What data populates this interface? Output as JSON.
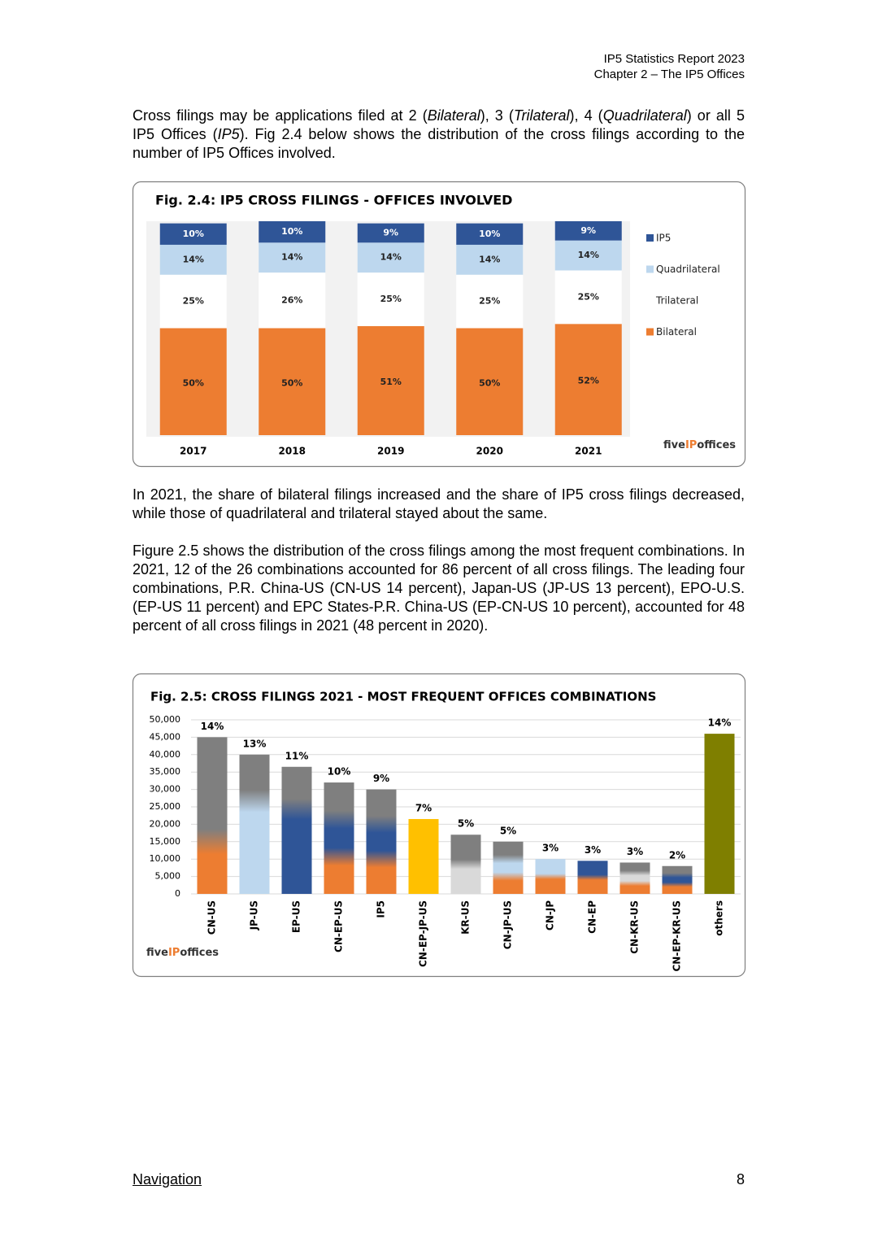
{
  "header": {
    "line1": "IP5 Statistics Report 2023",
    "line2": "Chapter 2 – The IP5 Offices"
  },
  "paragraphs": [
    [
      "Cross filings may be applications filed at 2 (",
      "Bilateral",
      "), 3 (",
      "Trilateral",
      "), 4 (",
      "Quadrilateral",
      ") or all 5 IP5 Offices (",
      "IP5",
      "). Fig 2.4 below shows the distribution of the cross filings according to the number of IP5 Offices involved."
    ],
    "In 2021, the share of bilateral filings increased and the share of IP5 cross filings decreased, while those of quadrilateral and trilateral stayed about the same.",
    "Figure 2.5 shows the distribution of the cross filings among the most frequent combinations. In 2021, 12 of the 26 combinations accounted for 86 percent of all cross filings. The leading four combinations, P.R. China-US (CN-US 14 percent), Japan-US (JP-US 13 percent), EPO-U.S. (EP-US 11 percent) and EPC States-P.R. China-US (EP-CN-US 10 percent), accounted for 48 percent of all cross filings in 2021 (48 percent in 2020)."
  ],
  "chart_data": [
    {
      "type": "bar",
      "stacked": true,
      "title": "Fig. 2.4: IP5 CROSS FILINGS - OFFICES INVOLVED",
      "categories": [
        "2017",
        "2018",
        "2019",
        "2020",
        "2021"
      ],
      "series": [
        {
          "name": "IP5",
          "color": "#2f5597",
          "label_color": "#ffffff",
          "values": [
            10,
            10,
            9,
            10,
            9
          ],
          "value_labels": [
            "10%",
            "10%",
            "9%",
            "10%",
            "9%"
          ]
        },
        {
          "name": "Quadrilateral",
          "color": "#bdd7ee",
          "label_color": "#222222",
          "values": [
            14,
            14,
            14,
            14,
            14
          ],
          "value_labels": [
            "14%",
            "14%",
            "14%",
            "14%",
            "14%"
          ]
        },
        {
          "name": "Trilateral",
          "color": "#ffffff",
          "label_color": "#222222",
          "values": [
            25,
            26,
            25,
            25,
            25
          ],
          "value_labels": [
            "25%",
            "26%",
            "25%",
            "25%",
            "25%"
          ]
        },
        {
          "name": "Bilateral",
          "color": "#ed7d31",
          "label_color": "#222222",
          "values": [
            50,
            50,
            51,
            50,
            52
          ],
          "value_labels": [
            "50%",
            "50%",
            "51%",
            "50%",
            "52%"
          ]
        }
      ],
      "legend": "right",
      "logo": [
        "five",
        "IP",
        "offices"
      ]
    },
    {
      "type": "bar",
      "title": "Fig. 2.5: CROSS FILINGS 2021 - MOST FREQUENT OFFICES COMBINATIONS",
      "categories": [
        "CN-US",
        "JP-US",
        "EP-US",
        "CN-EP-US",
        "IP5",
        "CN-EP-JP-US",
        "KR-US",
        "CN-JP-US",
        "CN-JP",
        "CN-EP",
        "CN-KR-US",
        "CN-EP-KR-US",
        "others"
      ],
      "values": [
        45000,
        40000,
        36500,
        32000,
        30000,
        21500,
        17000,
        15000,
        10000,
        9500,
        9000,
        8000,
        46000
      ],
      "value_labels": [
        "14%",
        "13%",
        "11%",
        "10%",
        "9%",
        "7%",
        "5%",
        "5%",
        "3%",
        "3%",
        "3%",
        "2%",
        "14%"
      ],
      "colors": [
        [
          "#7f7f7f",
          "#7f7f7f",
          "#ed7d31"
        ],
        [
          "#7f7f7f",
          "#bdd7ee",
          "#bdd7ee"
        ],
        [
          "#7f7f7f",
          "#2f5597",
          "#2f5597"
        ],
        [
          "#7f7f7f",
          "#2f5597",
          "#ed7d31"
        ],
        [
          "#7f7f7f",
          "#2f5597",
          "#ed7d31"
        ],
        [
          "#ffc000"
        ],
        [
          "#7f7f7f",
          "#d9d9d9"
        ],
        [
          "#7f7f7f",
          "#bdd7ee",
          "#ed7d31"
        ],
        [
          "#bdd7ee",
          "#ed7d31"
        ],
        [
          "#2f5597",
          "#ed7d31"
        ],
        [
          "#7f7f7f",
          "#d9d9d9",
          "#ed7d31"
        ],
        [
          "#7f7f7f",
          "#2f5597",
          "#ed7d31"
        ],
        [
          "#7f7f00"
        ]
      ],
      "ylim": [
        0,
        50000
      ],
      "yticks": [
        0,
        {
          "value": 5000,
          "label": "5,000"
        },
        {
          "value": 10000,
          "label": "10,000"
        },
        {
          "value": 15000,
          "label": "15,000"
        },
        {
          "value": 20000,
          "label": "20,000"
        },
        {
          "value": 25000,
          "label": "25,000"
        },
        {
          "value": 30000,
          "label": "30,000"
        },
        {
          "value": 35000,
          "label": "35,000"
        },
        {
          "value": 40000,
          "label": "40,000"
        },
        {
          "value": 45000,
          "label": "45,000"
        },
        {
          "value": 50000,
          "label": "50,000"
        }
      ],
      "grid": true,
      "logo": [
        "five",
        "IP",
        "offices"
      ]
    }
  ],
  "footer": {
    "navigation": "Navigation",
    "page_number": "8"
  }
}
